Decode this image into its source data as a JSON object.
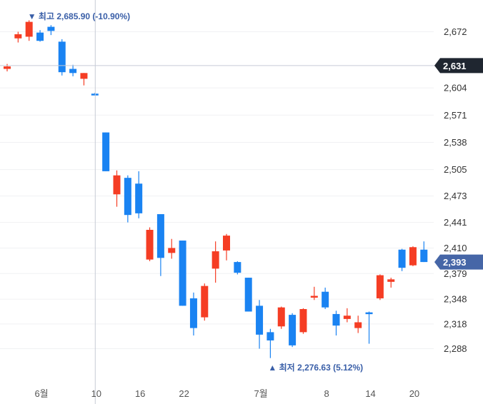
{
  "chart_data": {
    "type": "candlestick",
    "y_ticks": [
      "2,672",
      "2,604",
      "2,571",
      "2,538",
      "2,505",
      "2,473",
      "2,441",
      "2,410",
      "2,379",
      "2,348",
      "2,318",
      "2,288"
    ],
    "y_range": [
      2265,
      2693
    ],
    "x_ticks": [
      {
        "label": "6월",
        "index": 3
      },
      {
        "label": "10",
        "index": 8
      },
      {
        "label": "16",
        "index": 12
      },
      {
        "label": "22",
        "index": 16
      },
      {
        "label": "7월",
        "index": 23
      },
      {
        "label": "8",
        "index": 29
      },
      {
        "label": "14",
        "index": 33
      },
      {
        "label": "20",
        "index": 37
      }
    ],
    "candles": [
      {
        "o": 2627,
        "h": 2633,
        "l": 2624,
        "c": 2630
      },
      {
        "o": 2664,
        "h": 2672,
        "l": 2659,
        "c": 2669
      },
      {
        "o": 2666,
        "h": 2685.9,
        "l": 2661,
        "c": 2684
      },
      {
        "o": 2671,
        "h": 2674,
        "l": 2660,
        "c": 2661
      },
      {
        "o": 2678,
        "h": 2680,
        "l": 2668,
        "c": 2673
      },
      {
        "o": 2660,
        "h": 2663,
        "l": 2619,
        "c": 2623
      },
      {
        "o": 2627,
        "h": 2632,
        "l": 2618,
        "c": 2622
      },
      {
        "o": 2615,
        "h": 2622,
        "l": 2607,
        "c": 2622
      },
      {
        "o": 2597,
        "h": 2598,
        "l": 2595,
        "c": 2596
      },
      {
        "o": 2550,
        "h": 2550,
        "l": 2503,
        "c": 2503
      },
      {
        "o": 2475,
        "h": 2504,
        "l": 2460,
        "c": 2498
      },
      {
        "o": 2495,
        "h": 2498,
        "l": 2441,
        "c": 2450
      },
      {
        "o": 2488,
        "h": 2503,
        "l": 2446,
        "c": 2452
      },
      {
        "o": 2396,
        "h": 2435,
        "l": 2394,
        "c": 2432
      },
      {
        "o": 2451,
        "h": 2451,
        "l": 2376,
        "c": 2398
      },
      {
        "o": 2404,
        "h": 2421,
        "l": 2397,
        "c": 2410
      },
      {
        "o": 2419,
        "h": 2419,
        "l": 2340,
        "c": 2340
      },
      {
        "o": 2349,
        "h": 2356,
        "l": 2304,
        "c": 2313
      },
      {
        "o": 2326,
        "h": 2367,
        "l": 2322,
        "c": 2364
      },
      {
        "o": 2385,
        "h": 2418,
        "l": 2368,
        "c": 2406
      },
      {
        "o": 2407,
        "h": 2427,
        "l": 2395,
        "c": 2425
      },
      {
        "o": 2393,
        "h": 2394,
        "l": 2378,
        "c": 2380
      },
      {
        "o": 2374,
        "h": 2374,
        "l": 2333,
        "c": 2333
      },
      {
        "o": 2340,
        "h": 2347,
        "l": 2288,
        "c": 2305
      },
      {
        "o": 2308,
        "h": 2312,
        "l": 2276.63,
        "c": 2298
      },
      {
        "o": 2315,
        "h": 2339,
        "l": 2312,
        "c": 2338
      },
      {
        "o": 2329,
        "h": 2331,
        "l": 2290,
        "c": 2292
      },
      {
        "o": 2308,
        "h": 2337,
        "l": 2306,
        "c": 2336
      },
      {
        "o": 2350,
        "h": 2363,
        "l": 2347,
        "c": 2352
      },
      {
        "o": 2357,
        "h": 2362,
        "l": 2336,
        "c": 2338
      },
      {
        "o": 2330,
        "h": 2334,
        "l": 2304,
        "c": 2316
      },
      {
        "o": 2324,
        "h": 2337,
        "l": 2320,
        "c": 2328
      },
      {
        "o": 2313,
        "h": 2328,
        "l": 2307,
        "c": 2320
      },
      {
        "o": 2332,
        "h": 2333,
        "l": 2294,
        "c": 2330
      },
      {
        "o": 2349,
        "h": 2378,
        "l": 2347,
        "c": 2377
      },
      {
        "o": 2369,
        "h": 2374,
        "l": 2362,
        "c": 2372
      },
      {
        "o": 2408,
        "h": 2409,
        "l": 2382,
        "c": 2386
      },
      {
        "o": 2389,
        "h": 2412,
        "l": 2388,
        "c": 2411
      },
      {
        "o": 2408,
        "h": 2418,
        "l": 2393,
        "c": 2393
      }
    ],
    "high_annotation": {
      "marker": "▼",
      "label": "최고",
      "value": "2,685.90",
      "pct": "(-10.90%)",
      "index": 2
    },
    "low_annotation": {
      "marker": "▲",
      "label": "최저",
      "value": "2,276.63",
      "pct": "(5.12%)",
      "index": 24
    },
    "crosshair": {
      "index": 8,
      "price": 2631,
      "label": "2,631"
    },
    "last_price": {
      "price": 2393,
      "label": "2,393"
    },
    "colors": {
      "up": "#f53d24",
      "down": "#1a83f2",
      "annotation": "#3a5fa8",
      "crosshair": "#c6cbd6",
      "crosshair_badge": "#1f2630",
      "last_price_badge": "#4666a7",
      "grid": "#f0f1f3"
    },
    "grid": true
  }
}
